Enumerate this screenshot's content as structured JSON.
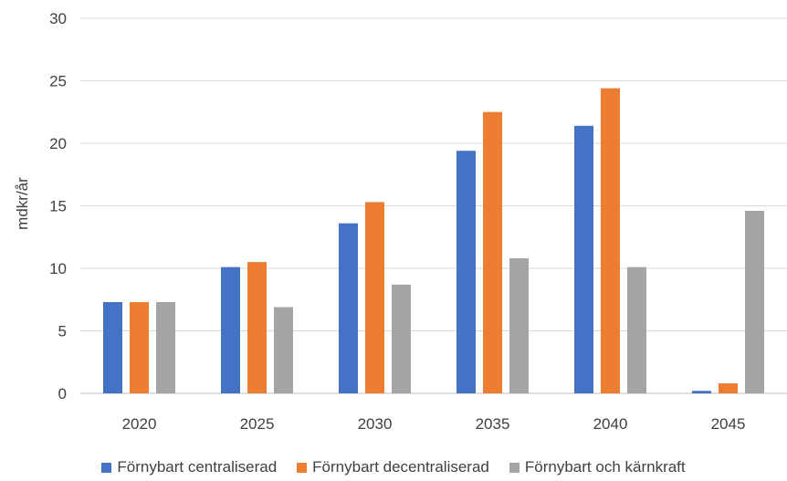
{
  "chart_data": {
    "type": "bar",
    "categories": [
      "2020",
      "2025",
      "2030",
      "2035",
      "2040",
      "2045"
    ],
    "series": [
      {
        "name": "Förnybart centraliserad",
        "color": "#4472C4",
        "values": [
          7.3,
          10.1,
          13.6,
          19.4,
          21.4,
          0.2
        ]
      },
      {
        "name": "Förnybart decentraliserad",
        "color": "#ED7D31",
        "values": [
          7.3,
          10.5,
          15.3,
          22.5,
          24.4,
          0.8
        ]
      },
      {
        "name": "Förnybart och kärnkraft",
        "color": "#A5A5A5",
        "values": [
          7.3,
          6.9,
          8.7,
          10.8,
          10.1,
          14.6
        ]
      }
    ],
    "ylabel": "mdkr/år",
    "ylim": [
      0,
      30
    ],
    "yticks": [
      "0",
      "5",
      "10",
      "15",
      "20",
      "25",
      "30"
    ],
    "grid": true,
    "legend": "bottom"
  }
}
